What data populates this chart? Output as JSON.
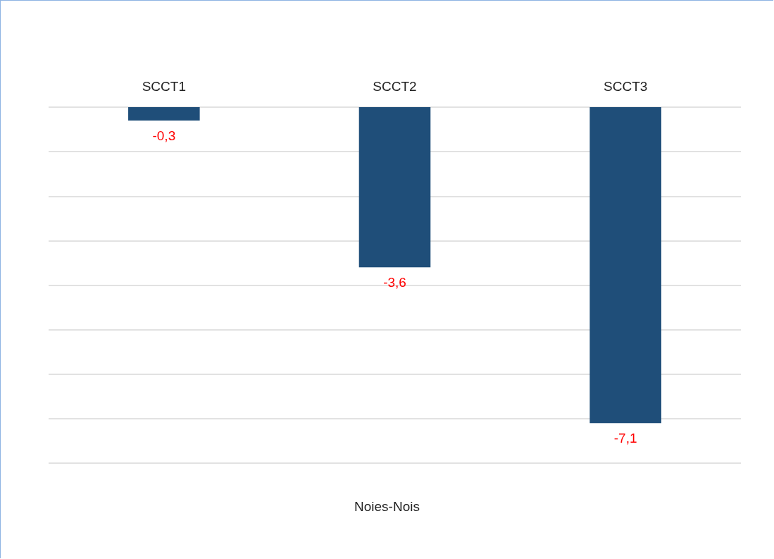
{
  "chart_data": {
    "type": "bar",
    "xlabel": "Noies-Nois",
    "categories": [
      "SCCT1",
      "SCCT2",
      "SCCT3"
    ],
    "values": [
      -0.3,
      -3.6,
      -7.1
    ],
    "color": "#1f4e79",
    "value_labels": [
      "-0,3",
      "-3,6",
      "-7,1"
    ],
    "ylim": [
      -8,
      0
    ],
    "yticks": [
      {
        "value": -8,
        "label": null
      },
      {
        "value": -7,
        "label": null
      },
      {
        "value": -6,
        "label": null
      },
      {
        "value": -5,
        "label": null
      },
      {
        "value": -4,
        "label": null
      },
      {
        "value": -3,
        "label": null
      },
      {
        "value": -2,
        "label": null
      },
      {
        "value": -1,
        "label": null
      },
      {
        "value": 0,
        "label": null
      }
    ],
    "grid": "y",
    "tick_labels": "x"
  }
}
